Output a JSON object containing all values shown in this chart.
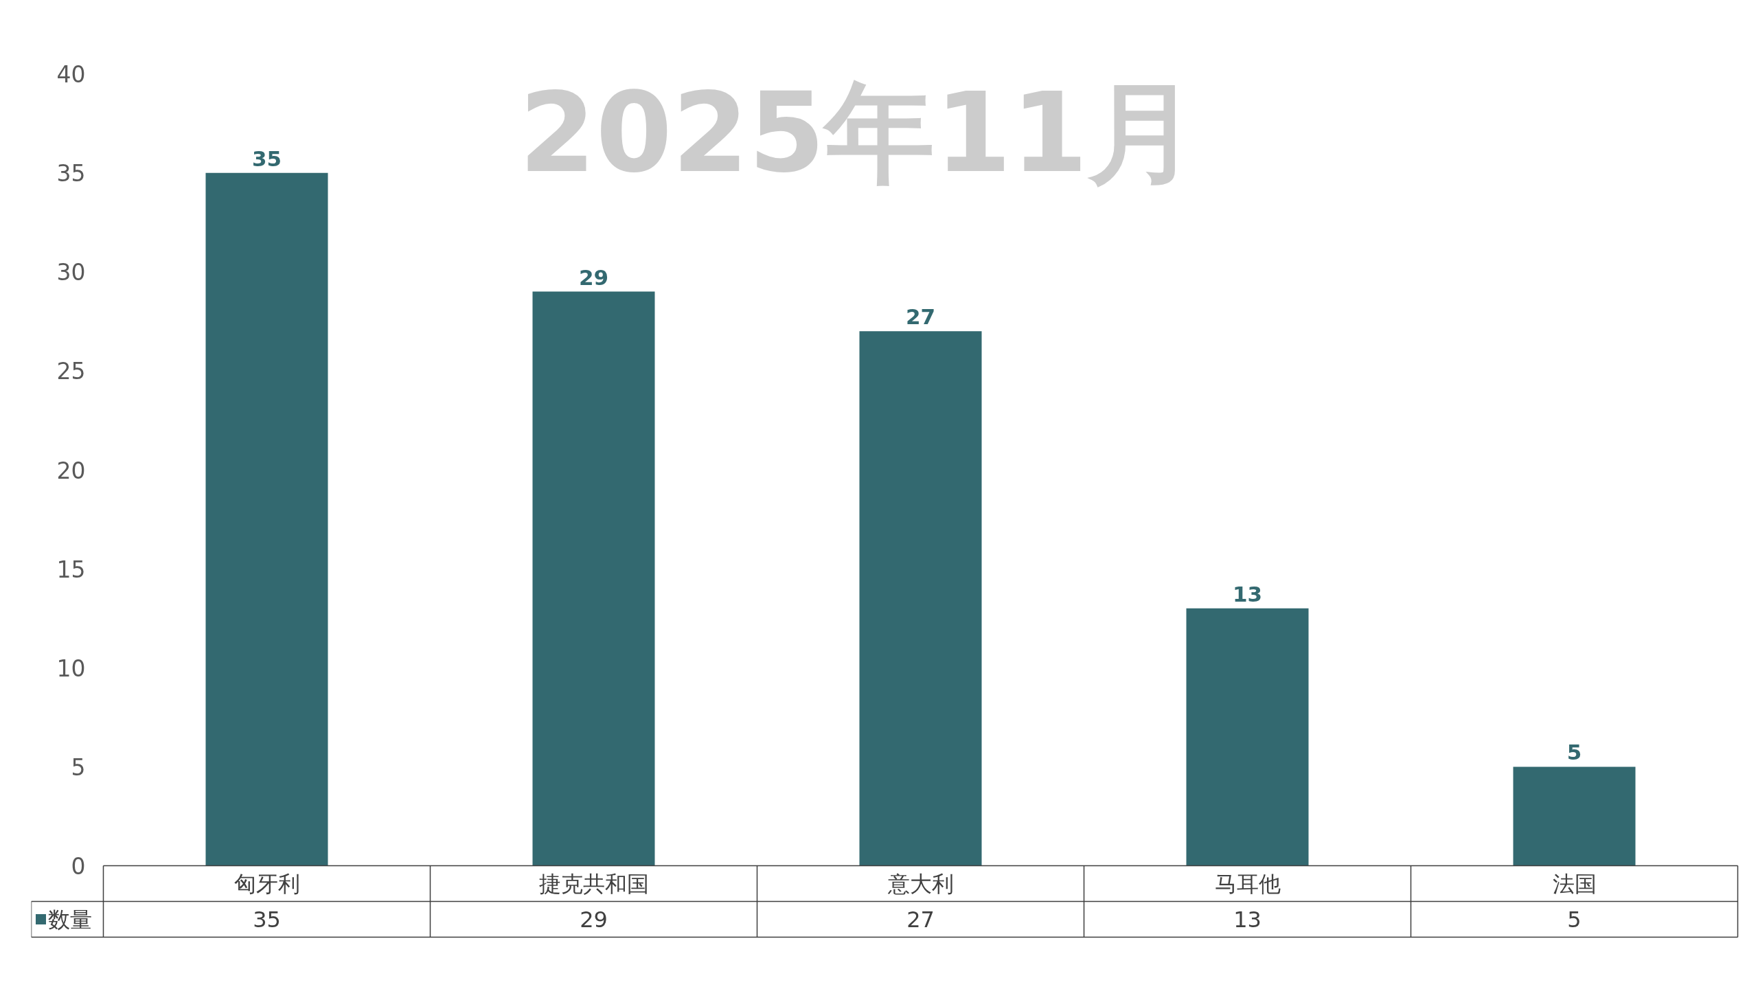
{
  "chart_data": {
    "type": "bar",
    "title": "2025年11月",
    "categories": [
      "匈牙利",
      "捷克共和国",
      "意大利",
      "马耳他",
      "法国"
    ],
    "series": [
      {
        "name": "数量",
        "color": "#336970",
        "values": [
          35,
          29,
          27,
          13,
          5
        ]
      }
    ],
    "annotations": [
      {
        "text": "35",
        "x": "匈牙利",
        "y": 35
      },
      {
        "text": "29",
        "x": "捷克共和国",
        "y": 29
      },
      {
        "text": "27",
        "x": "意大利",
        "y": 27
      },
      {
        "text": "13",
        "x": "马耳他",
        "y": 13
      },
      {
        "text": "5",
        "x": "法国",
        "y": 5
      }
    ],
    "ylim": [
      0,
      40
    ],
    "yticks": [
      0,
      5,
      10,
      15,
      20,
      25,
      30,
      35,
      40
    ],
    "grid": false,
    "legend": "bottom",
    "data_labels": true
  }
}
